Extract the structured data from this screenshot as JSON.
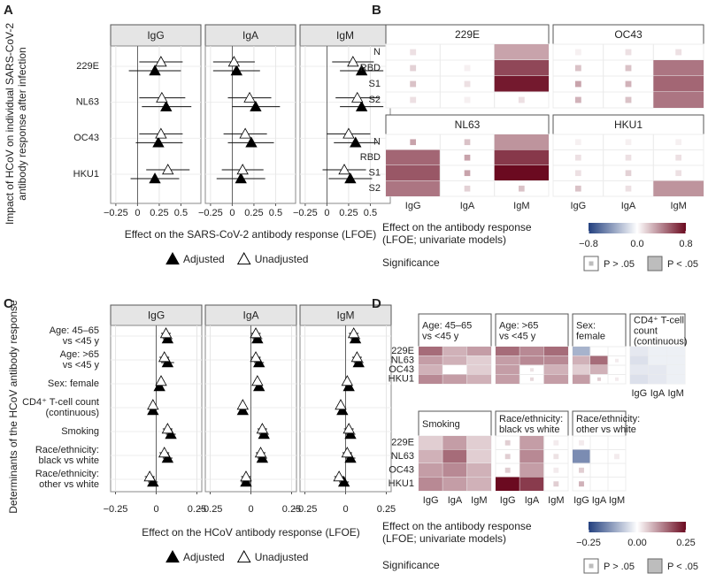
{
  "chart_data": [
    {
      "type": "forest",
      "panel_label": "A",
      "ylabel": [
        "Impact of HCoV on individual SARS-CoV-2",
        "antibody response after infection"
      ],
      "xlabel": "Effect on the SARS-CoV-2 antibody response (LFOE)",
      "categories": [
        "229E",
        "NL63",
        "OC43",
        "HKU1"
      ],
      "series": [
        {
          "name": "Adjusted",
          "filled": true
        },
        {
          "name": "Unadjusted",
          "filled": false
        }
      ],
      "xlim": [
        -0.31,
        0.73
      ],
      "xticks": [
        {
          "value": -0.25,
          "label": "−0.25"
        },
        0,
        0.25,
        0.5
      ],
      "grid": true,
      "facets": [
        {
          "name": "IgG",
          "estimates": [
            [
              0.2,
              0.33,
              0.24,
              0.2
            ],
            [
              0.27,
              0.28,
              0.27,
              0.35
            ]
          ],
          "lower": [
            [
              -0.1,
              0.05,
              -0.02,
              -0.08
            ],
            [
              0.02,
              0.02,
              0.02,
              0.1
            ]
          ],
          "upper": [
            [
              0.5,
              0.62,
              0.52,
              0.48
            ],
            [
              0.52,
              0.55,
              0.52,
              0.6
            ]
          ]
        },
        {
          "name": "IgA",
          "estimates": [
            [
              0.05,
              0.27,
              0.22,
              0.1
            ],
            [
              0.02,
              0.2,
              0.15,
              0.12
            ]
          ],
          "lower": [
            [
              -0.22,
              0.0,
              -0.05,
              -0.18
            ],
            [
              -0.22,
              -0.05,
              -0.1,
              -0.12
            ]
          ],
          "upper": [
            [
              0.32,
              0.55,
              0.48,
              0.38
            ],
            [
              0.26,
              0.45,
              0.4,
              0.36
            ]
          ]
        },
        {
          "name": "IgM",
          "estimates": [
            [
              0.4,
              0.4,
              0.33,
              0.27
            ],
            [
              0.3,
              0.35,
              0.25,
              0.2
            ]
          ],
          "lower": [
            [
              0.15,
              0.15,
              0.08,
              0.02
            ],
            [
              0.06,
              0.1,
              0.0,
              -0.05
            ]
          ],
          "upper": [
            [
              0.65,
              0.65,
              0.58,
              0.52
            ],
            [
              0.54,
              0.6,
              0.5,
              0.45
            ]
          ]
        }
      ]
    },
    {
      "type": "heatmap",
      "panel_label": "B",
      "rows": [
        "N",
        "RBD",
        "S1",
        "S2"
      ],
      "columns": [
        "IgG",
        "IgA",
        "IgM"
      ],
      "colors": [
        "#23407f",
        "#ffffff",
        "#6b0a20"
      ],
      "clim": [
        -0.8,
        0.8
      ],
      "cticks": [
        {
          "value": -0.8,
          "label": "−0.8"
        },
        {
          "value": 0,
          "label": "0.0"
        },
        0.8
      ],
      "colorbar_title": [
        "Effect on the antibody response",
        "(LFOE; univariate models)"
      ],
      "significance_title": "Significance",
      "significance_labels": [
        "P > .05",
        "P < .05"
      ],
      "panels": [
        {
          "title": "229E",
          "values": [
            [
              0.1,
              0.0,
              0.3
            ],
            [
              0.15,
              0.05,
              0.6
            ],
            [
              0.2,
              0.1,
              0.75
            ],
            [
              0.1,
              0.05,
              0.1
            ]
          ],
          "significant": [
            [
              false,
              false,
              true
            ],
            [
              false,
              false,
              true
            ],
            [
              false,
              false,
              true
            ],
            [
              false,
              false,
              false
            ]
          ]
        },
        {
          "title": "OC43",
          "values": [
            [
              0.05,
              0.1,
              0.1
            ],
            [
              0.2,
              0.2,
              0.45
            ],
            [
              0.3,
              0.25,
              0.5
            ],
            [
              0.25,
              0.2,
              0.45
            ]
          ],
          "significant": [
            [
              false,
              false,
              false
            ],
            [
              false,
              false,
              true
            ],
            [
              false,
              false,
              true
            ],
            [
              false,
              false,
              true
            ]
          ]
        },
        {
          "title": "NL63",
          "values": [
            [
              0.3,
              0.2,
              0.35
            ],
            [
              0.5,
              0.3,
              0.65
            ],
            [
              0.55,
              0.3,
              0.8
            ],
            [
              0.45,
              0.15,
              0.2
            ]
          ],
          "significant": [
            [
              false,
              false,
              true
            ],
            [
              true,
              false,
              true
            ],
            [
              true,
              false,
              true
            ],
            [
              true,
              false,
              false
            ]
          ]
        },
        {
          "title": "HKU1",
          "values": [
            [
              0.05,
              0.05,
              0.05
            ],
            [
              0.1,
              0.1,
              0.1
            ],
            [
              0.1,
              0.15,
              0.1
            ],
            [
              0.2,
              0.1,
              0.35
            ]
          ],
          "significant": [
            [
              false,
              false,
              false
            ],
            [
              false,
              false,
              false
            ],
            [
              false,
              false,
              false
            ],
            [
              false,
              false,
              true
            ]
          ]
        }
      ]
    },
    {
      "type": "forest",
      "panel_label": "C",
      "ylabel": [
        "Determinants of the HCoV antibody response"
      ],
      "xlabel": "Effect on the HCoV antibody response (LFOE)",
      "categories": [
        [
          "Age: 45–65",
          "vs <45 y"
        ],
        [
          "Age: >65",
          "vs <45 y"
        ],
        [
          "Sex: female"
        ],
        [
          "CD4⁺ T-cell count",
          "(continuous)"
        ],
        [
          "Smoking"
        ],
        [
          "Race/ethnicity:",
          "black vs white"
        ],
        [
          "Race/ethnicity:",
          "other vs white"
        ]
      ],
      "series": [
        {
          "name": "Adjusted",
          "filled": true
        },
        {
          "name": "Unadjusted",
          "filled": false
        }
      ],
      "xlim": [
        -0.28,
        0.28
      ],
      "xticks": [
        {
          "value": -0.25,
          "label": "−0.25"
        },
        0,
        0.25
      ],
      "grid": true,
      "facets": [
        {
          "name": "IgG",
          "estimates": [
            [
              0.07,
              0.07,
              0.02,
              -0.02,
              0.09,
              0.07,
              -0.02
            ],
            [
              0.06,
              0.05,
              0.03,
              -0.02,
              0.07,
              0.05,
              -0.04
            ]
          ],
          "lower": [
            [
              0.04,
              0.03,
              0.0,
              -0.04,
              0.06,
              0.04,
              -0.05
            ],
            [
              0.03,
              0.02,
              0.01,
              -0.04,
              0.04,
              0.02,
              -0.07
            ]
          ],
          "upper": [
            [
              0.1,
              0.11,
              0.04,
              0.0,
              0.12,
              0.1,
              0.01
            ],
            [
              0.09,
              0.08,
              0.05,
              0.0,
              0.1,
              0.08,
              -0.01
            ]
          ]
        },
        {
          "name": "IgA",
          "estimates": [
            [
              0.04,
              0.05,
              0.05,
              -0.05,
              0.08,
              0.07,
              -0.03
            ],
            [
              0.03,
              0.03,
              0.04,
              -0.05,
              0.07,
              0.06,
              -0.03
            ]
          ],
          "lower": [
            [
              0.01,
              0.02,
              0.03,
              -0.07,
              0.05,
              0.04,
              -0.06
            ],
            [
              0.0,
              0.0,
              0.02,
              -0.07,
              0.04,
              0.03,
              -0.06
            ]
          ],
          "upper": [
            [
              0.07,
              0.08,
              0.07,
              -0.03,
              0.11,
              0.1,
              0.0
            ],
            [
              0.06,
              0.06,
              0.06,
              -0.03,
              0.1,
              0.09,
              0.0
            ]
          ]
        },
        {
          "name": "IgM",
          "estimates": [
            [
              0.06,
              0.08,
              0.02,
              -0.02,
              0.03,
              0.03,
              -0.01
            ],
            [
              0.05,
              0.07,
              0.01,
              -0.03,
              0.02,
              0.01,
              -0.04
            ]
          ],
          "lower": [
            [
              0.03,
              0.05,
              0.0,
              -0.04,
              0.0,
              0.0,
              -0.04
            ],
            [
              0.02,
              0.04,
              -0.01,
              -0.05,
              -0.01,
              -0.02,
              -0.07
            ]
          ],
          "upper": [
            [
              0.09,
              0.11,
              0.04,
              0.0,
              0.06,
              0.06,
              0.02
            ],
            [
              0.08,
              0.1,
              0.03,
              -0.01,
              0.05,
              0.04,
              -0.01
            ]
          ]
        }
      ]
    },
    {
      "type": "heatmap",
      "panel_label": "D",
      "rows": [
        "229E",
        "NL63",
        "OC43",
        "HKU1"
      ],
      "columns": [
        "IgG",
        "IgA",
        "IgM"
      ],
      "colors": [
        "#23407f",
        "#ffffff",
        "#6b0a20"
      ],
      "clim": [
        -0.25,
        0.25
      ],
      "cticks": [
        {
          "value": -0.25,
          "label": "−0.25"
        },
        {
          "value": 0,
          "label": "0.00"
        },
        0.25
      ],
      "colorbar_title": [
        "Effect on the antibody response",
        "(LFOE; univariate models)"
      ],
      "significance_title": "Significance",
      "significance_labels": [
        "P > .05",
        "P < .05"
      ],
      "panels": [
        {
          "title": [
            "Age: 45–65",
            "vs <45 y"
          ],
          "values": [
            [
              0.15,
              0.08,
              0.1
            ],
            [
              0.1,
              0.08,
              0.05
            ],
            [
              0.08,
              0.0,
              0.05
            ],
            [
              0.12,
              0.1,
              0.08
            ]
          ],
          "significant": [
            [
              true,
              true,
              true
            ],
            [
              true,
              true,
              true
            ],
            [
              true,
              true,
              true
            ],
            [
              true,
              true,
              true
            ]
          ]
        },
        {
          "title": [
            "Age: >65",
            "vs <45 y"
          ],
          "values": [
            [
              0.15,
              0.12,
              0.15
            ],
            [
              0.1,
              0.12,
              0.12
            ],
            [
              0.1,
              0.03,
              0.08
            ],
            [
              0.1,
              0.04,
              0.1
            ]
          ],
          "significant": [
            [
              true,
              true,
              true
            ],
            [
              true,
              true,
              true
            ],
            [
              true,
              false,
              true
            ],
            [
              true,
              false,
              true
            ]
          ]
        },
        {
          "title": [
            "Sex:",
            "female"
          ],
          "values": [
            [
              -0.1,
              0.0,
              0.0
            ],
            [
              0.08,
              0.15,
              0.02
            ],
            [
              0.05,
              0.08,
              0.0
            ],
            [
              0.1,
              0.05,
              0.02
            ]
          ],
          "significant": [
            [
              true,
              false,
              false
            ],
            [
              true,
              true,
              false
            ],
            [
              true,
              true,
              false
            ],
            [
              true,
              false,
              false
            ]
          ]
        },
        {
          "title": [
            "CD4⁺ T-cell",
            "count",
            "(continuous)"
          ],
          "values": [
            [
              -0.03,
              -0.02,
              -0.02
            ],
            [
              -0.04,
              -0.02,
              -0.02
            ],
            [
              -0.03,
              -0.03,
              -0.02
            ],
            [
              -0.04,
              -0.03,
              -0.02
            ]
          ],
          "significant": [
            [
              true,
              true,
              true
            ],
            [
              true,
              true,
              true
            ],
            [
              true,
              true,
              true
            ],
            [
              true,
              true,
              true
            ]
          ]
        },
        {
          "title": [
            "Smoking"
          ],
          "values": [
            [
              0.05,
              0.1,
              0.05
            ],
            [
              0.08,
              0.15,
              0.05
            ],
            [
              0.1,
              0.12,
              0.08
            ],
            [
              0.12,
              0.1,
              0.08
            ]
          ],
          "significant": [
            [
              true,
              true,
              true
            ],
            [
              true,
              true,
              true
            ],
            [
              true,
              true,
              true
            ],
            [
              true,
              true,
              true
            ]
          ]
        },
        {
          "title": [
            "Race/ethnicity:",
            "black vs white"
          ],
          "values": [
            [
              0.05,
              0.1,
              0.02
            ],
            [
              0.05,
              0.12,
              0.03
            ],
            [
              0.05,
              0.1,
              0.02
            ],
            [
              0.25,
              0.2,
              0.05
            ]
          ],
          "significant": [
            [
              false,
              true,
              false
            ],
            [
              false,
              true,
              false
            ],
            [
              false,
              true,
              false
            ],
            [
              true,
              true,
              false
            ]
          ]
        },
        {
          "title": [
            "Race/ethnicity:",
            "other vs white"
          ],
          "values": [
            [
              0.02,
              0.0,
              0.0
            ],
            [
              -0.15,
              0.0,
              0.02
            ],
            [
              0.05,
              0.0,
              0.0
            ],
            [
              0.08,
              0.0,
              0.0
            ]
          ],
          "significant": [
            [
              false,
              false,
              false
            ],
            [
              true,
              false,
              false
            ],
            [
              false,
              false,
              false
            ],
            [
              false,
              false,
              false
            ]
          ]
        }
      ]
    }
  ]
}
